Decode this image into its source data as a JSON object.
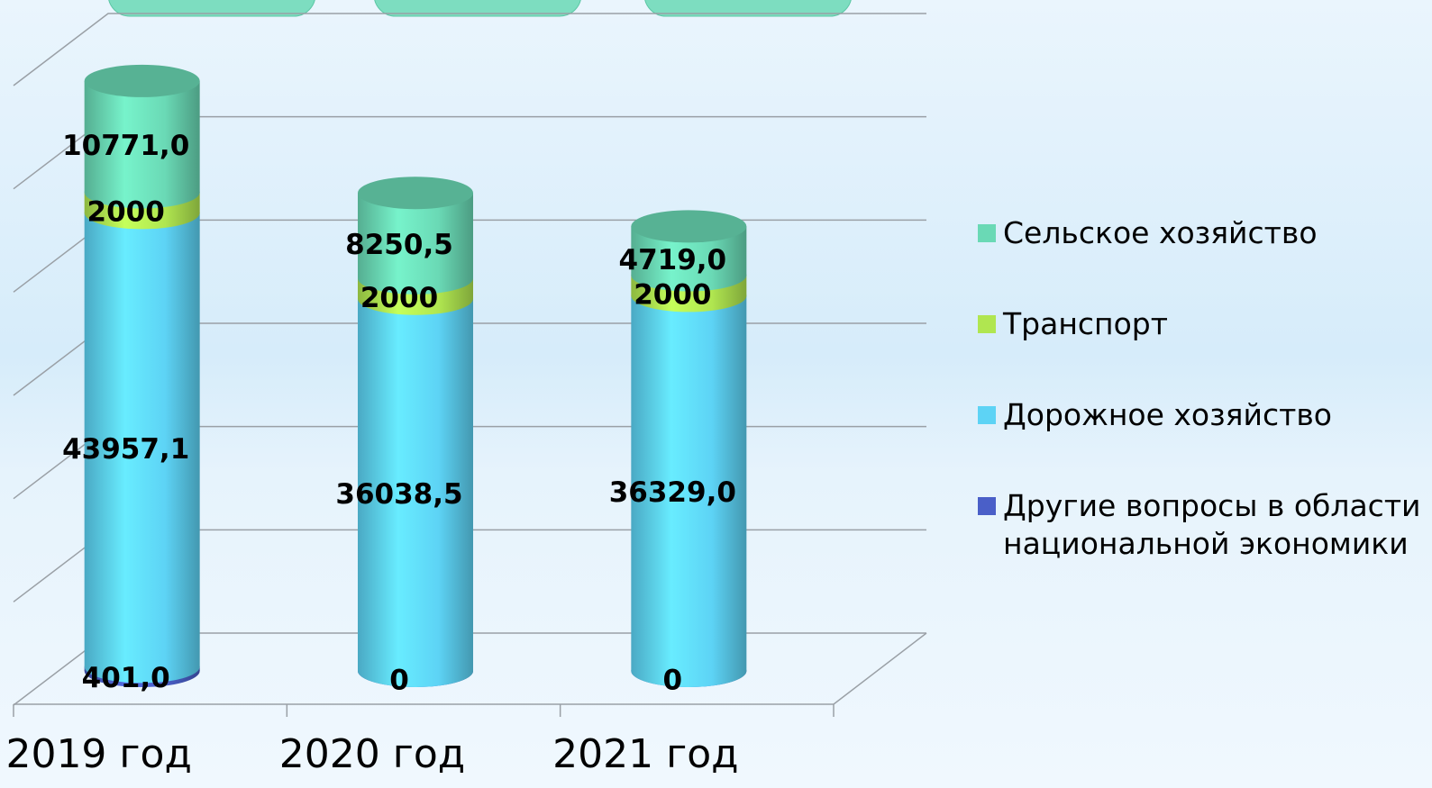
{
  "chart_data": {
    "type": "bar3d-cylinder-stacked",
    "categories": [
      "2019 год",
      "2020 год",
      "2021 год"
    ],
    "series": [
      {
        "name": "Другие вопросы в области национальной экономики",
        "color": "#4a5fc8",
        "values": [
          401.0,
          0,
          0
        ],
        "value_labels": [
          "401,0",
          "0",
          "0"
        ]
      },
      {
        "name": "Дорожное хозяйство",
        "color": "#5dd3f5",
        "values": [
          43957.1,
          36038.5,
          36329.0
        ],
        "value_labels": [
          "43957,1",
          "36038,5",
          "36329,0"
        ]
      },
      {
        "name": "Транспорт",
        "color": "#b0e650",
        "values": [
          2000,
          2000,
          2000
        ]
      },
      {
        "name": "Сельское хозяйство",
        "color": "#6ad9b5",
        "values": [
          10771.0,
          8250.5,
          4719.0
        ],
        "value_labels": [
          "10771,0",
          "8250,5",
          "4719,0"
        ]
      }
    ],
    "ylim": [
      0,
      60000
    ],
    "yticks": [
      0,
      10000,
      20000,
      30000,
      40000,
      50000,
      60000
    ],
    "grid": true,
    "legend": "right"
  }
}
